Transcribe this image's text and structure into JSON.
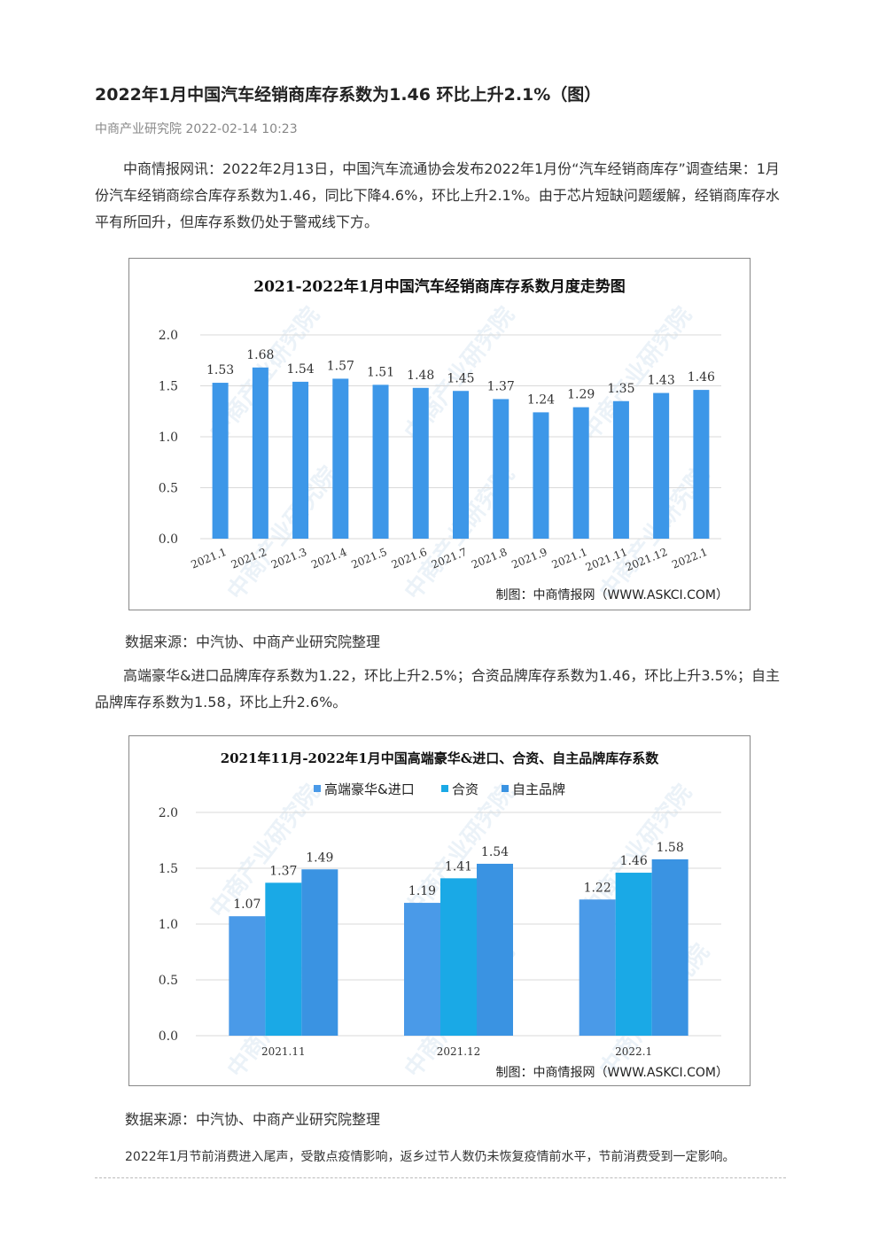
{
  "article": {
    "title": "2022年1月中国汽车经销商库存系数为1.46 环比上升2.1%（图）",
    "source_line": "中商产业研究院 2022-02-14 10:23",
    "paragraph1": "中商情报网讯：2022年2月13日，中国汽车流通协会发布2022年1月份“汽车经销商库存”调查结果：1月份汽车经销商综合库存系数为1.46，同比下降4.6%，环比上升2.1%。由于芯片短缺问题缓解，经销商库存水平有所回升，但库存系数仍处于警戒线下方。",
    "data_source1": "数据来源：中汽协、中商产业研究院整理",
    "paragraph2": "高端豪华&进口品牌库存系数为1.22，环比上升2.5%；合资品牌库存系数为1.46，环比上升3.5%；自主品牌库存系数为1.58，环比上升2.6%。",
    "data_source2": "数据来源：中汽协、中商产业研究院整理",
    "paragraph3": "2022年1月节前消费进入尾声，受散点疫情影响，返乡过节人数仍未恢复疫情前水平，节前消费受到一定影响。"
  },
  "watermark_text": "中商产业研究院",
  "chart_data": [
    {
      "type": "bar",
      "title": "2021-2022年1月中国汽车经销商库存系数月度走势图",
      "categories": [
        "2021.1",
        "2021.2",
        "2021.3",
        "2021.4",
        "2021.5",
        "2021.6",
        "2021.7",
        "2021.8",
        "2021.9",
        "2021.1",
        "2021.11",
        "2021.12",
        "2022.1"
      ],
      "values": [
        1.53,
        1.68,
        1.54,
        1.57,
        1.51,
        1.48,
        1.45,
        1.37,
        1.24,
        1.29,
        1.35,
        1.43,
        1.46
      ],
      "yticks": [
        "0.0",
        "0.5",
        "1.0",
        "1.5",
        "2.0"
      ],
      "ylim": [
        0,
        2.0
      ],
      "grid": true,
      "color": "#3d97e8",
      "credit": "制图：中商情报网（WWW.ASKCI.COM）"
    },
    {
      "type": "bar",
      "title": "2021年11月-2022年1月中国高端豪华&进口、合资、自主品牌库存系数",
      "categories": [
        "2021.11",
        "2021.12",
        "2022.1"
      ],
      "series": [
        {
          "name": "高端豪华&进口",
          "values": [
            1.07,
            1.19,
            1.22
          ],
          "color": "#4a9ae8"
        },
        {
          "name": "合资",
          "values": [
            1.37,
            1.41,
            1.46
          ],
          "color": "#1aa9e6"
        },
        {
          "name": "自主品牌",
          "values": [
            1.49,
            1.54,
            1.58
          ],
          "color": "#3a93e2"
        }
      ],
      "yticks": [
        "0.0",
        "0.5",
        "1.0",
        "1.5",
        "2.0"
      ],
      "ylim": [
        0,
        2.0
      ],
      "grid": true,
      "legend": "top",
      "credit": "制图：中商情报网（WWW.ASKCI.COM）"
    }
  ]
}
